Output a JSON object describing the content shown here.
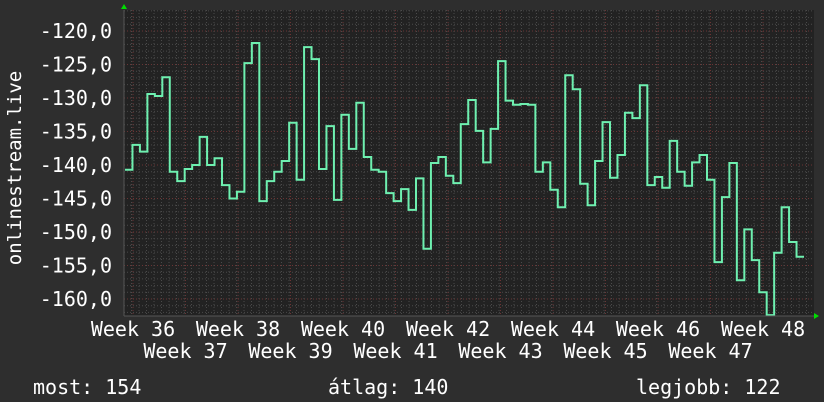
{
  "chart_data": {
    "type": "line",
    "step": true,
    "ylabel": "onlinestream.live",
    "ylim": [
      -162.5,
      -117
    ],
    "yticks": [
      "-120,0",
      "-125,0",
      "-130,0",
      "-135,0",
      "-140,0",
      "-145,0",
      "-150,0",
      "-155,0",
      "-160,0"
    ],
    "ytick_values": [
      -120,
      -125,
      -130,
      -135,
      -140,
      -145,
      -150,
      -155,
      -160
    ],
    "xticks": [
      "Week 36",
      "Week 37",
      "Week 38",
      "Week 39",
      "Week 40",
      "Week 41",
      "Week 42",
      "Week 43",
      "Week 44",
      "Week 45",
      "Week 46",
      "Week 47",
      "Week 48"
    ],
    "grid": true,
    "line_color": "#6ef0b0",
    "background": "#222222",
    "values": [
      -140.7,
      -137,
      -138,
      -129.4,
      -129.7,
      -126.9,
      -141,
      -142.4,
      -140.6,
      -140,
      -135.8,
      -140,
      -139,
      -143,
      -145,
      -144,
      -124.8,
      -121.8,
      -145.4,
      -142.4,
      -141,
      -139.4,
      -133.7,
      -142.2,
      -122.4,
      -124.2,
      -140.6,
      -134.2,
      -145.2,
      -132.5,
      -137.6,
      -130.7,
      -138.8,
      -140.7,
      -141,
      -144.2,
      -145.4,
      -143.6,
      -146.7,
      -142,
      -152.5,
      -139.7,
      -138.8,
      -141.6,
      -142.7,
      -133.9,
      -130.3,
      -134.9,
      -139.6,
      -134.6,
      -124.5,
      -130.4,
      -131,
      -130.9,
      -131,
      -141,
      -139.6,
      -143.7,
      -146.3,
      -126.6,
      -128.7,
      -142.8,
      -146,
      -139.4,
      -133.6,
      -141.9,
      -138.5,
      -132.2,
      -133,
      -128.1,
      -143,
      -141.8,
      -143.4,
      -136.4,
      -141,
      -143.1,
      -139.6,
      -138.5,
      -142.2,
      -154.5,
      -144.8,
      -139.7,
      -157.2,
      -149.6,
      -154.2,
      -159,
      -162.4,
      -153.1,
      -146.3,
      -151.5,
      -153.7
    ]
  },
  "stats": {
    "current": "most: 154",
    "average": "átlag: 140",
    "best": "legjobb: 122"
  }
}
